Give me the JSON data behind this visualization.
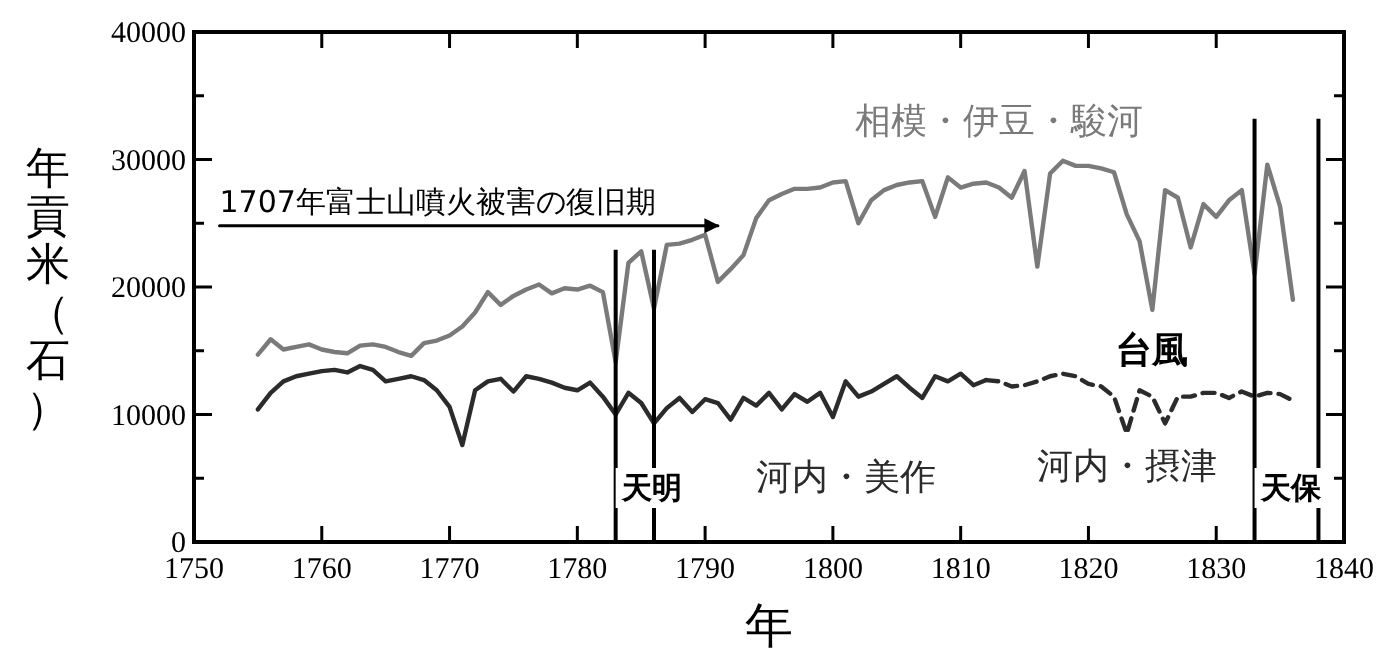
{
  "chart_data": {
    "type": "line",
    "xlabel": "年",
    "ylabel": "年貢米（石）",
    "xlim": [
      1750,
      1840
    ],
    "xticks": [
      1750,
      1760,
      1770,
      1780,
      1790,
      1800,
      1810,
      1820,
      1830,
      1840
    ],
    "ylim": [
      0,
      40000
    ],
    "yticks": [
      0,
      {
        "value": 5000,
        "label": null
      },
      10000,
      {
        "value": 15000,
        "label": null
      },
      20000,
      {
        "value": 25000,
        "label": null
      },
      30000,
      {
        "value": 35000,
        "label": null
      },
      40000
    ],
    "grid": false,
    "legend": false,
    "marker": "none",
    "series": [
      {
        "name": "相模・伊豆・駿河",
        "color": "#7a7a7a",
        "line_style": "solid",
        "x": [
          1755,
          1756,
          1757,
          1758,
          1759,
          1760,
          1761,
          1762,
          1763,
          1764,
          1765,
          1766,
          1767,
          1768,
          1769,
          1770,
          1771,
          1772,
          1773,
          1774,
          1775,
          1776,
          1777,
          1778,
          1779,
          1780,
          1781,
          1782,
          1783,
          1784,
          1785,
          1786,
          1787,
          1788,
          1789,
          1790,
          1791,
          1792,
          1793,
          1794,
          1795,
          1796,
          1797,
          1798,
          1799,
          1800,
          1801,
          1802,
          1803,
          1804,
          1805,
          1806,
          1807,
          1808,
          1809,
          1810,
          1811,
          1812,
          1813,
          1814,
          1815,
          1816,
          1817,
          1818,
          1819,
          1820,
          1821,
          1822,
          1823,
          1824,
          1825,
          1826,
          1827,
          1828,
          1829,
          1830,
          1831,
          1832,
          1833,
          1834,
          1835,
          1836
        ],
        "values": [
          14700,
          15900,
          15100,
          15300,
          15500,
          15100,
          14900,
          14800,
          15400,
          15500,
          15300,
          14900,
          14600,
          15600,
          15800,
          16200,
          16900,
          18000,
          19600,
          18600,
          19300,
          19800,
          20200,
          19500,
          19900,
          19800,
          20100,
          19600,
          14100,
          21900,
          22800,
          18300,
          23300,
          23400,
          23700,
          24100,
          20400,
          21400,
          22500,
          25400,
          26800,
          27300,
          27700,
          27700,
          27800,
          28200,
          28300,
          25000,
          26800,
          27600,
          28000,
          28200,
          28300,
          25500,
          28600,
          27800,
          28100,
          28200,
          27800,
          27000,
          29100,
          21600,
          28900,
          29900,
          29500,
          29500,
          29300,
          29000,
          25700,
          23600,
          18200,
          27600,
          27000,
          23100,
          26500,
          25500,
          26800,
          27600,
          21000,
          29600,
          26300,
          19000
        ]
      },
      {
        "name": "河内・美作",
        "color": "#2b2b2b",
        "line_style": "solid",
        "x": [
          1755,
          1756,
          1757,
          1758,
          1759,
          1760,
          1761,
          1762,
          1763,
          1764,
          1765,
          1766,
          1767,
          1768,
          1769,
          1770,
          1771,
          1772,
          1773,
          1774,
          1775,
          1776,
          1777,
          1778,
          1779,
          1780,
          1781,
          1782,
          1783,
          1784,
          1785,
          1786,
          1787,
          1788,
          1789,
          1790,
          1791,
          1792,
          1793,
          1794,
          1795,
          1796,
          1797,
          1798,
          1799,
          1800,
          1801,
          1802,
          1803,
          1804,
          1805,
          1806,
          1807,
          1808,
          1809,
          1810,
          1811,
          1812
        ],
        "values": [
          10400,
          11700,
          12600,
          13000,
          13200,
          13400,
          13500,
          13300,
          13800,
          13500,
          12600,
          12800,
          13000,
          12700,
          11900,
          10600,
          7600,
          11900,
          12600,
          12800,
          11800,
          13000,
          12800,
          12500,
          12100,
          11900,
          12500,
          11400,
          10000,
          11700,
          10900,
          9300,
          10500,
          11300,
          10200,
          11200,
          10900,
          9600,
          11300,
          10700,
          11700,
          10400,
          11600,
          11000,
          11700,
          9800,
          12600,
          11400,
          11800,
          12400,
          13000,
          12100,
          11300,
          13000,
          12600,
          13200,
          12300,
          12700
        ]
      },
      {
        "name": "河内・摂津",
        "color": "#2b2b2b",
        "line_style": "dashed",
        "x": [
          1812,
          1813,
          1814,
          1815,
          1816,
          1817,
          1818,
          1819,
          1820,
          1821,
          1822,
          1823,
          1824,
          1825,
          1826,
          1827,
          1828,
          1829,
          1830,
          1831,
          1832,
          1833,
          1834,
          1835,
          1836
        ],
        "values": [
          12700,
          12600,
          12200,
          12300,
          12600,
          13000,
          13200,
          13000,
          12400,
          12200,
          11400,
          8500,
          11900,
          11400,
          9300,
          11400,
          11400,
          11700,
          11700,
          11300,
          11800,
          11400,
          11700,
          11600,
          11100
        ]
      },
      {
        "type": "line",
        "color": "#000000",
        "line_style": "solid",
        "x": [
          1752,
          1791
        ],
        "values": [
          24800,
          24800
        ]
      }
    ],
    "ref_lines": [
      {
        "axis": "x",
        "value": 1783,
        "label": "天明",
        "color": "#000000"
      },
      {
        "axis": "x",
        "value": 1786,
        "label": null,
        "color": "#000000"
      },
      {
        "axis": "x",
        "value": 1833,
        "label": "天保",
        "color": "#000000"
      },
      {
        "axis": "x",
        "value": 1838,
        "label": null,
        "color": "#000000"
      }
    ],
    "annotations": [
      {
        "text": "台風",
        "x": 1825,
        "y": 18200
      },
      {
        "text": "1707年富士山噴火被害の復旧期",
        "x": 1752,
        "y": 24800
      }
    ]
  }
}
